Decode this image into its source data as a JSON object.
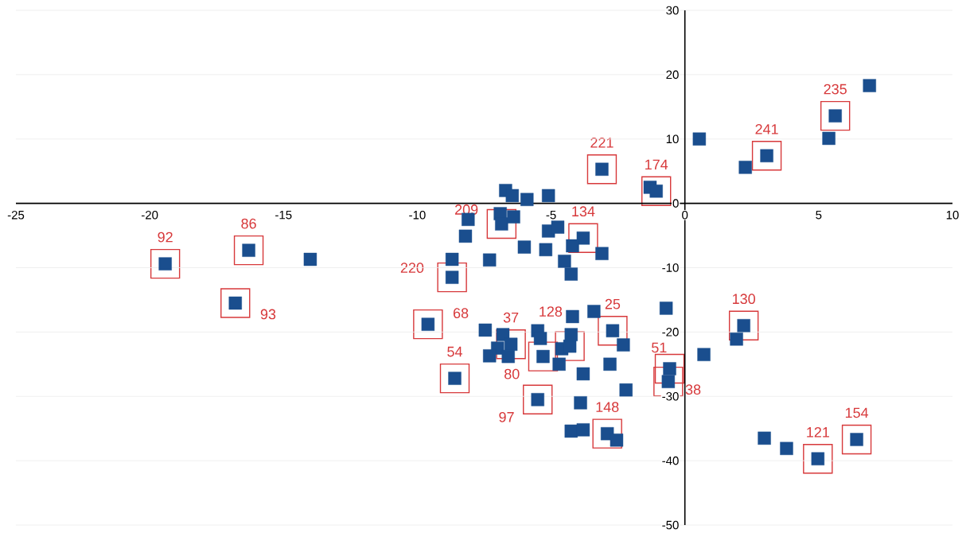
{
  "chart_data": {
    "type": "scatter",
    "marker": "square",
    "grid": "y",
    "xlim": [
      -25,
      10
    ],
    "ylim": [
      -50,
      30
    ],
    "xticks": [
      -25,
      -20,
      -15,
      -10,
      -5,
      0,
      5,
      10
    ],
    "yticks": [
      -50,
      -40,
      -30,
      -20,
      -10,
      0,
      10,
      20,
      30
    ],
    "series": [
      {
        "color": "#1a4e8e",
        "x": [
          -19.42,
          -16.3,
          -16.8,
          -14.0,
          -8.7,
          -8.7,
          -9.6,
          -8.6,
          -8.1,
          -8.2,
          -7.3,
          -6.7,
          -6.45,
          -5.9,
          -5.1,
          -6.9,
          -6.85,
          -6.4,
          -5.1,
          -4.75,
          -6.0,
          -5.2,
          -3.8,
          -4.2,
          -3.1,
          -4.5,
          -4.25,
          -3.1,
          -1.3,
          -1.07,
          -7.46,
          -6.8,
          -6.5,
          -7.0,
          -7.3,
          -6.6,
          -5.5,
          -5.4,
          -5.3,
          -4.7,
          -4.6,
          -4.3,
          -4.25,
          -4.2,
          -3.4,
          -2.7,
          -2.3,
          -2.8,
          -3.8,
          -2.2,
          -5.5,
          -3.9,
          -4.25,
          -3.8,
          -2.9,
          -2.55,
          -0.7,
          -0.57,
          -0.62,
          0.54,
          2.26,
          3.06,
          5.38,
          5.62,
          6.9,
          2.2,
          1.93,
          0.71,
          2.97,
          3.8,
          4.97,
          6.42
        ],
        "values": [
          -9.4,
          -7.3,
          -15.5,
          -8.7,
          -8.7,
          -11.5,
          -18.8,
          -27.2,
          -2.5,
          -5.1,
          -8.8,
          2.0,
          1.2,
          0.6,
          1.2,
          -1.6,
          -3.2,
          -2.1,
          -4.3,
          -3.7,
          -6.8,
          -7.2,
          -5.4,
          -6.6,
          -7.8,
          -9.0,
          -11.0,
          5.3,
          2.5,
          1.9,
          -19.7,
          -20.4,
          -21.9,
          -22.5,
          -23.7,
          -23.8,
          -19.8,
          -21.0,
          -23.8,
          -25.0,
          -22.6,
          -22.2,
          -20.4,
          -17.6,
          -16.8,
          -19.8,
          -22.0,
          -25.0,
          -26.5,
          -29.0,
          -30.5,
          -31.0,
          -35.4,
          -35.2,
          -35.8,
          -36.8,
          -16.3,
          -25.7,
          -27.7,
          10.0,
          5.6,
          7.4,
          10.1,
          13.6,
          18.3,
          -19.0,
          -21.1,
          -23.5,
          -36.5,
          -38.1,
          -39.7,
          -36.7
        ]
      }
    ],
    "annotations": [
      {
        "text": "92",
        "x": -19.42,
        "y": -9.4
      },
      {
        "text": "86",
        "x": -16.3,
        "y": -7.3
      },
      {
        "text": "93",
        "x": -16.8,
        "y": -15.5
      },
      {
        "text": "220",
        "x": -8.7,
        "y": -11.5
      },
      {
        "text": "68",
        "x": -9.6,
        "y": -18.8
      },
      {
        "text": "54",
        "x": -8.6,
        "y": -27.2
      },
      {
        "text": "209",
        "x": -6.85,
        "y": -3.2
      },
      {
        "text": "134",
        "x": -3.8,
        "y": -5.4
      },
      {
        "text": "221",
        "x": -3.1,
        "y": 5.3
      },
      {
        "text": "174",
        "x": -1.07,
        "y": 1.9
      },
      {
        "text": "241",
        "x": 3.06,
        "y": 7.4
      },
      {
        "text": "235",
        "x": 5.62,
        "y": 13.6
      },
      {
        "text": "37",
        "x": -6.5,
        "y": -21.9
      },
      {
        "text": "128",
        "x": -4.3,
        "y": -22.2
      },
      {
        "text": "25",
        "x": -2.7,
        "y": -19.8
      },
      {
        "text": "80",
        "x": -5.3,
        "y": -23.8
      },
      {
        "text": "97",
        "x": -5.5,
        "y": -30.5
      },
      {
        "text": "148",
        "x": -2.9,
        "y": -35.8
      },
      {
        "text": "51",
        "x": -0.57,
        "y": -25.7
      },
      {
        "text": "38",
        "x": -0.62,
        "y": -27.7
      },
      {
        "text": "130",
        "x": 2.2,
        "y": -19.0
      },
      {
        "text": "121",
        "x": 4.97,
        "y": -39.7
      },
      {
        "text": "154",
        "x": 6.42,
        "y": -36.7
      }
    ]
  }
}
